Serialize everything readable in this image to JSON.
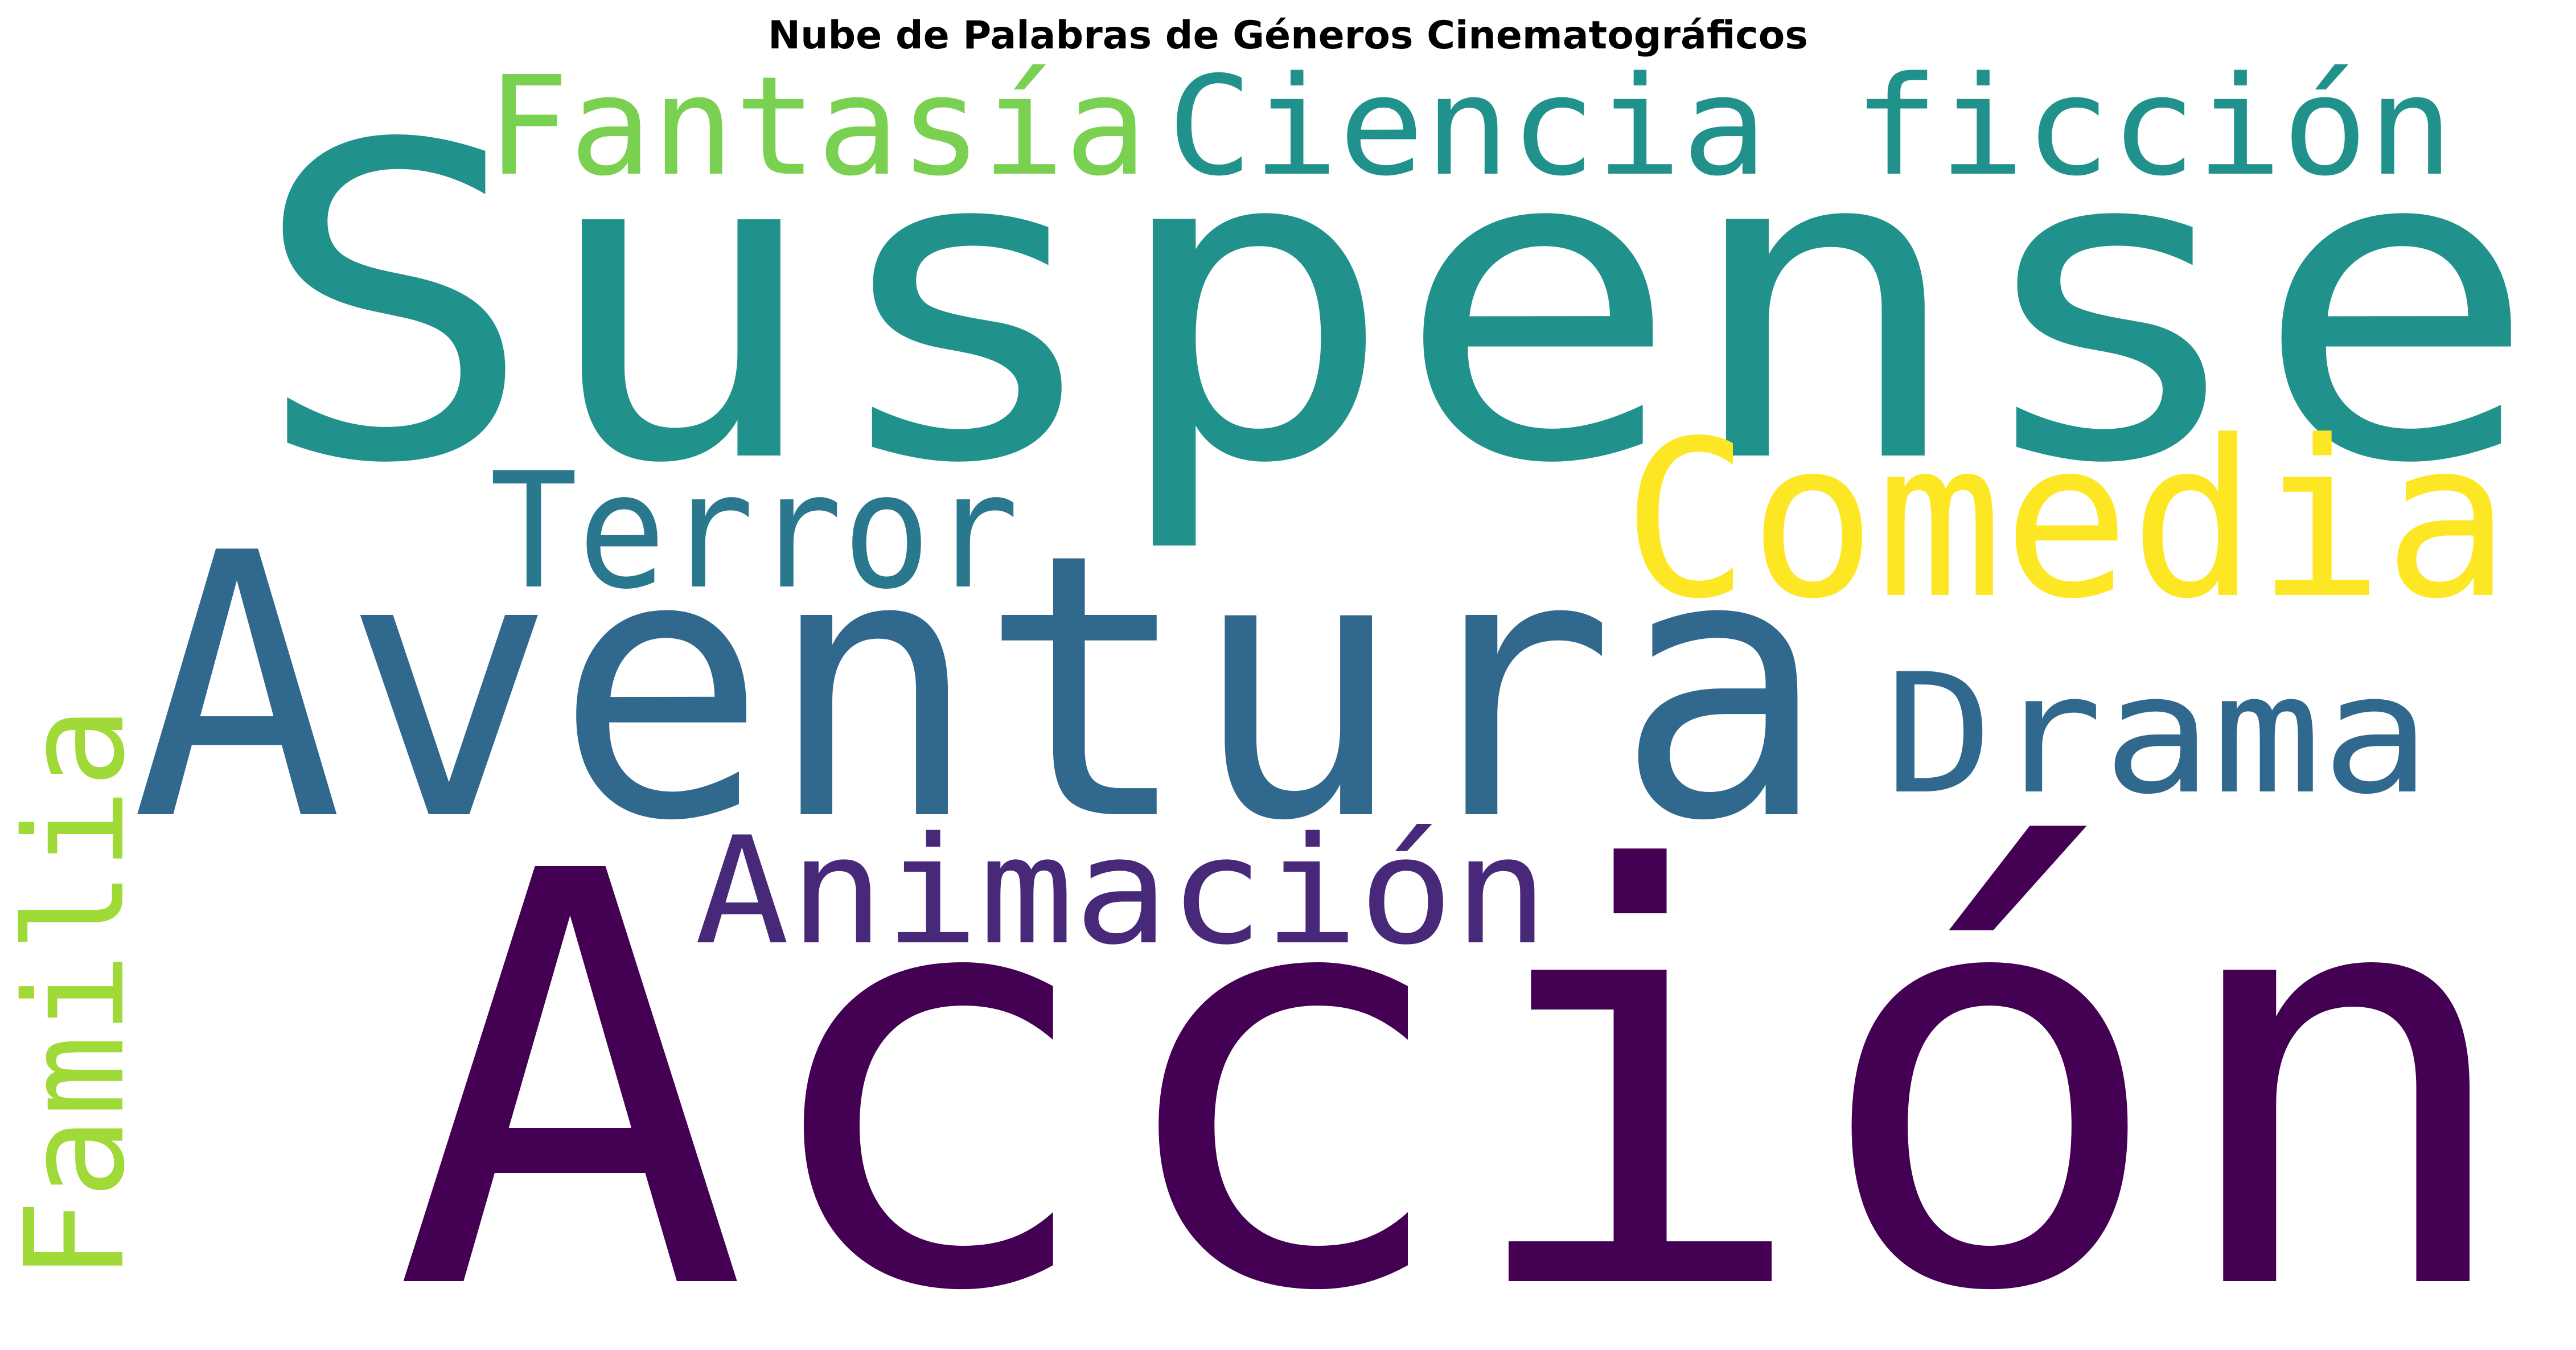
{
  "title": "Nube de Palabras de Géneros Cinematográficos",
  "words": [
    {
      "text": "Suspense",
      "color": "#21918c"
    },
    {
      "text": "Acción",
      "color": "#440154"
    },
    {
      "text": "Aventura",
      "color": "#31688e"
    },
    {
      "text": "Comedia",
      "color": "#fde725"
    },
    {
      "text": "Ciencia ficción",
      "color": "#21918c"
    },
    {
      "text": "Fantasía",
      "color": "#7ad151"
    },
    {
      "text": "Terror",
      "color": "#2a788e"
    },
    {
      "text": "Drama",
      "color": "#31688e"
    },
    {
      "text": "Animación",
      "color": "#482878"
    },
    {
      "text": "Familia",
      "color": "#a0da39"
    }
  ]
}
